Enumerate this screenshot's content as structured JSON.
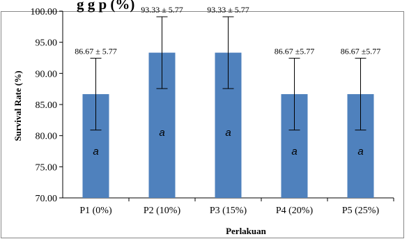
{
  "header_fragment": "g g    p (%)",
  "chart_data": {
    "type": "bar",
    "categories": [
      "P1 (0%)",
      "P2 (10%)",
      "P3 (15%)",
      "P4 (20%)",
      "P5 (25%)"
    ],
    "values": [
      86.67,
      93.33,
      93.33,
      86.67,
      86.67
    ],
    "errors": [
      5.77,
      5.77,
      5.77,
      5.77,
      5.77
    ],
    "data_labels": [
      "86.67 ± 5.77",
      "93.33 ± 5.77",
      "93.33 ± 5.77",
      "86.67 ±5.77",
      "86.67 ±5.77"
    ],
    "significance_labels": [
      "a",
      "a",
      "a",
      "a",
      "a"
    ],
    "ylim": [
      70,
      100
    ],
    "yticks": [
      70,
      75,
      80,
      85,
      90,
      95,
      100
    ],
    "ytick_labels": [
      "70.00",
      "75.00",
      "80.00",
      "85.00",
      "90.00",
      "95.00",
      "100.00"
    ],
    "xlabel": "Perlakuan",
    "ylabel": "Survival Rate (%)",
    "grid": false,
    "bar_color": "#4F81BD"
  }
}
